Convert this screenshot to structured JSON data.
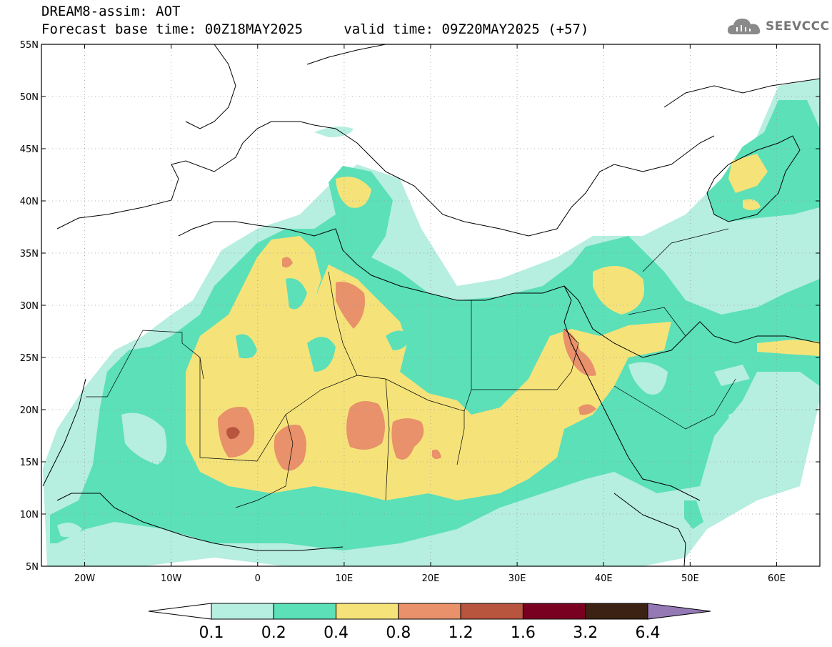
{
  "header": {
    "model_var": "DREAM8-assim: AOT",
    "base_time": "Forecast base time: 00Z18MAY2025",
    "valid_time": "valid time: 09Z20MAY2025 (+57)"
  },
  "logo": {
    "text": "SEEVCCC",
    "icon": "cloud-icon"
  },
  "map": {
    "lon_range": [
      -25,
      65
    ],
    "lat_range": [
      5,
      55
    ],
    "lat_labels": [
      "55N",
      "50N",
      "45N",
      "40N",
      "35N",
      "30N",
      "25N",
      "20N",
      "15N",
      "10N",
      "5N"
    ],
    "lon_labels": [
      "20W",
      "10W",
      "0",
      "10E",
      "20E",
      "30E",
      "40E",
      "50E",
      "60E"
    ]
  },
  "legend": {
    "labels": [
      "0.1",
      "0.2",
      "0.4",
      "0.8",
      "1.2",
      "1.6",
      "3.2",
      "6.4"
    ],
    "colors": [
      "#ffffff",
      "#b6eee0",
      "#5be0b8",
      "#f5e37a",
      "#e8916a",
      "#b7553e",
      "#7a0022",
      "#3b2212",
      "#9479b5"
    ]
  }
}
